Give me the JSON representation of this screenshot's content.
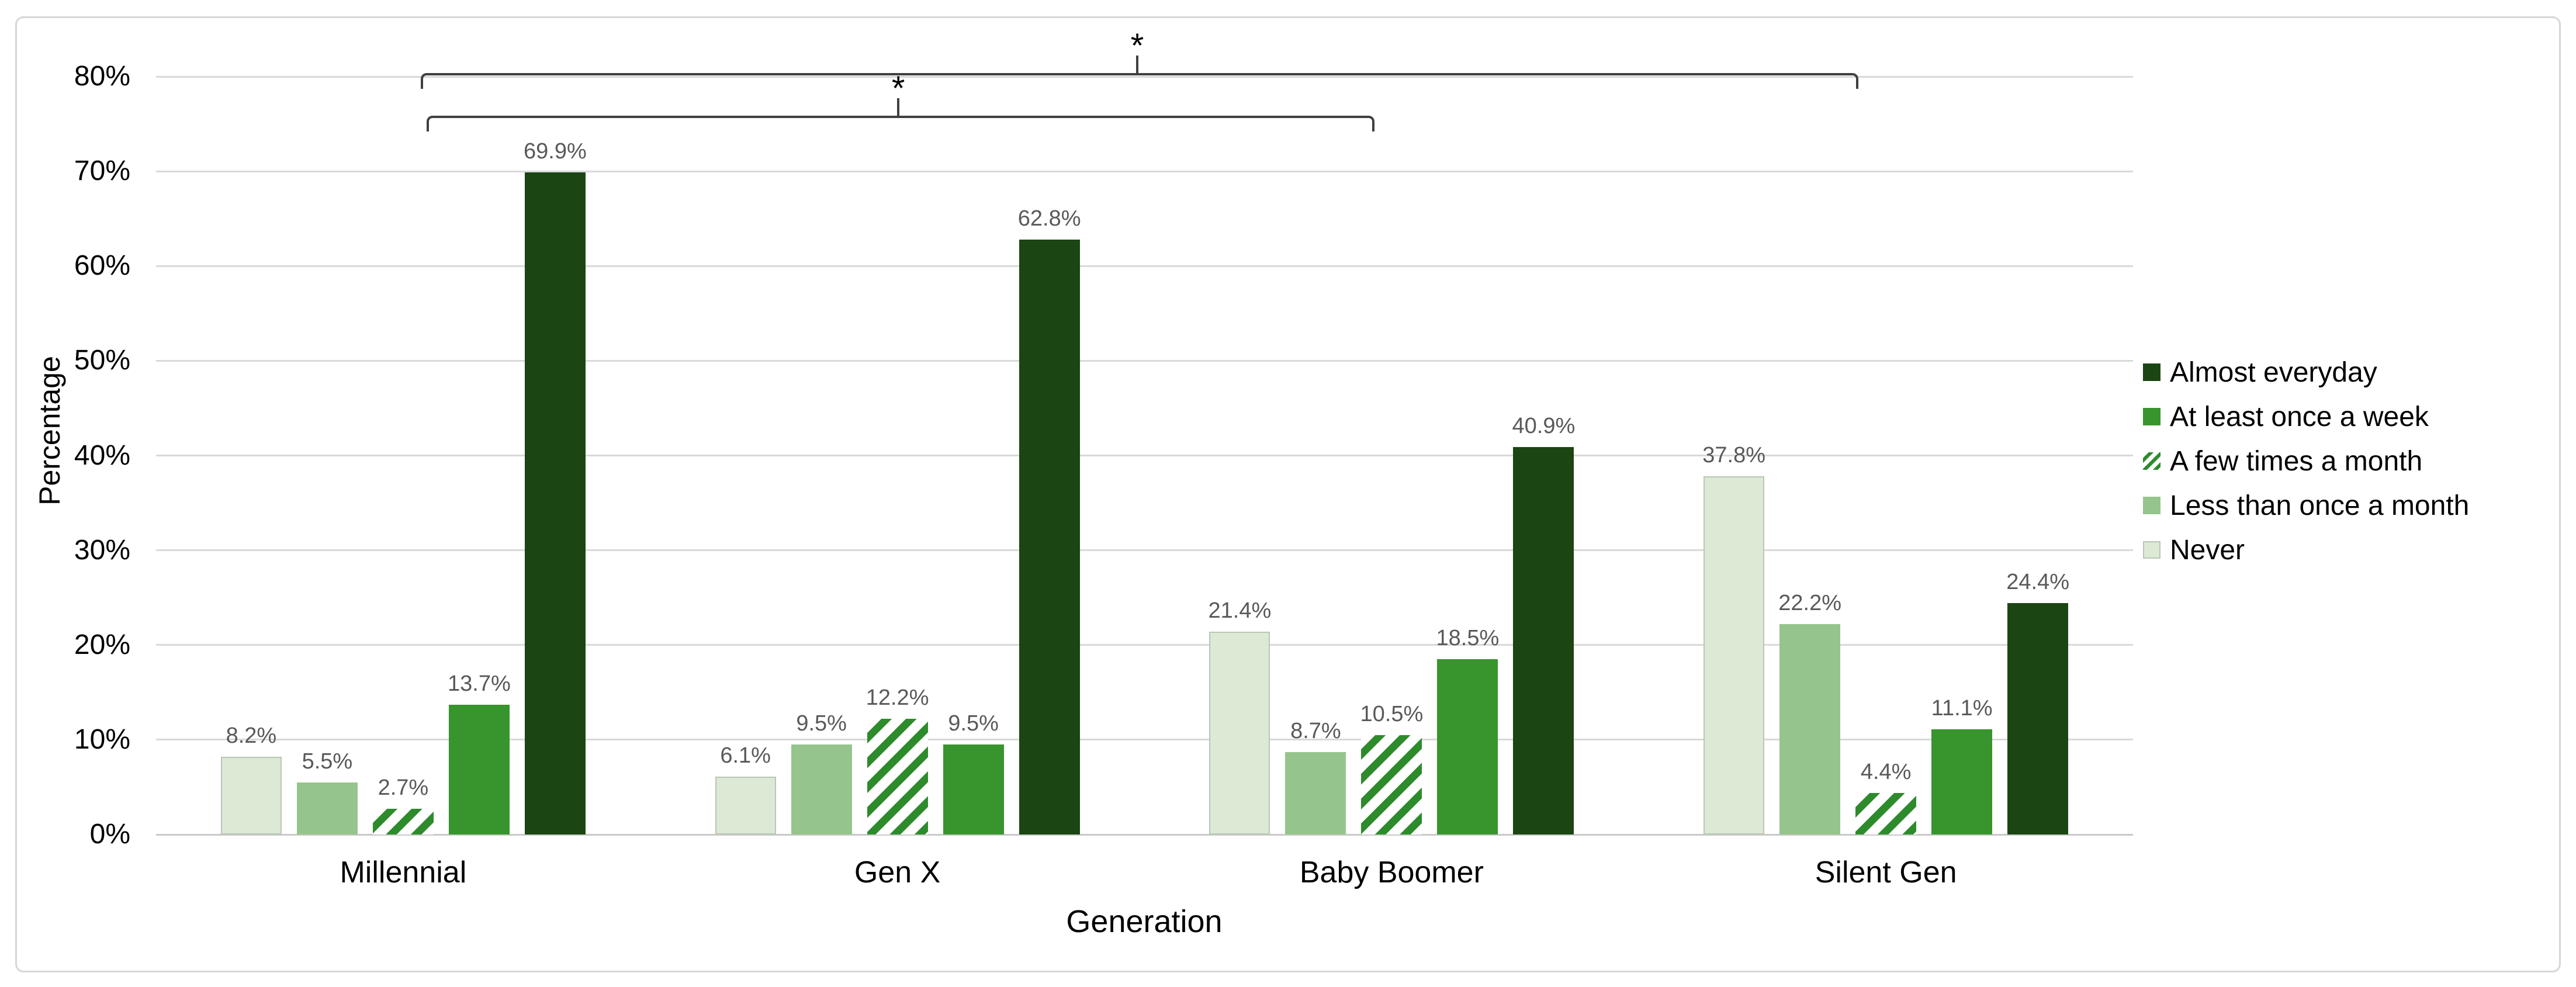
{
  "chart_data": {
    "type": "bar",
    "title": "",
    "xlabel": "Generation",
    "ylabel": "Percentage",
    "ylim": [
      0,
      80
    ],
    "yticks": [
      "0%",
      "10%",
      "20%",
      "30%",
      "40%",
      "50%",
      "60%",
      "70%",
      "80%"
    ],
    "grid": true,
    "legend_position": "right",
    "categories": [
      "Millennial",
      "Gen X",
      "Baby Boomer",
      "Silent Gen"
    ],
    "series": [
      {
        "name": "Never",
        "values": [
          8.2,
          6.1,
          21.4,
          37.8
        ],
        "labels": [
          "8.2%",
          "6.1%",
          "21.4%",
          "37.8%"
        ],
        "fill": "#dbe9d5",
        "border": "#bcc5b6",
        "pattern": "solid"
      },
      {
        "name": "Less than once a month",
        "values": [
          5.5,
          9.5,
          8.7,
          22.2
        ],
        "labels": [
          "5.5%",
          "9.5%",
          "8.7%",
          "22.2%"
        ],
        "fill": "#95c58c",
        "pattern": "solid"
      },
      {
        "name": "A few times a month",
        "values": [
          2.7,
          12.2,
          10.5,
          4.4
        ],
        "labels": [
          "2.7%",
          "12.2%",
          "10.5%",
          "4.4%"
        ],
        "fill": "#2e8b2c",
        "pattern": "diagonal-hatch"
      },
      {
        "name": "At least once a week",
        "values": [
          13.7,
          9.5,
          18.5,
          11.1
        ],
        "labels": [
          "13.7%",
          "9.5%",
          "18.5%",
          "11.1%"
        ],
        "fill": "#38942c",
        "pattern": "solid"
      },
      {
        "name": "Almost everyday",
        "values": [
          69.9,
          62.8,
          40.9,
          24.4
        ],
        "labels": [
          "69.9%",
          "62.8%",
          "40.9%",
          "24.4%"
        ],
        "fill": "#1b4513",
        "pattern": "solid"
      }
    ],
    "legend_order": [
      "Almost everyday",
      "At least once a week",
      "A few times a month",
      "Less than once a month",
      "Never"
    ],
    "annotations": [
      {
        "type": "significance-bracket",
        "label": "*",
        "from": "Millennial",
        "to": "Silent Gen"
      },
      {
        "type": "significance-bracket",
        "label": "*",
        "from": "Millennial",
        "to": "Baby Boomer"
      }
    ]
  },
  "colors": {
    "grid": "#d9d9d9",
    "axis_line": "#c9c9c9",
    "data_label": "#595959",
    "text": "#000000",
    "bracket": "#404040",
    "card_border": "#d6d6d6",
    "background": "#ffffff"
  }
}
